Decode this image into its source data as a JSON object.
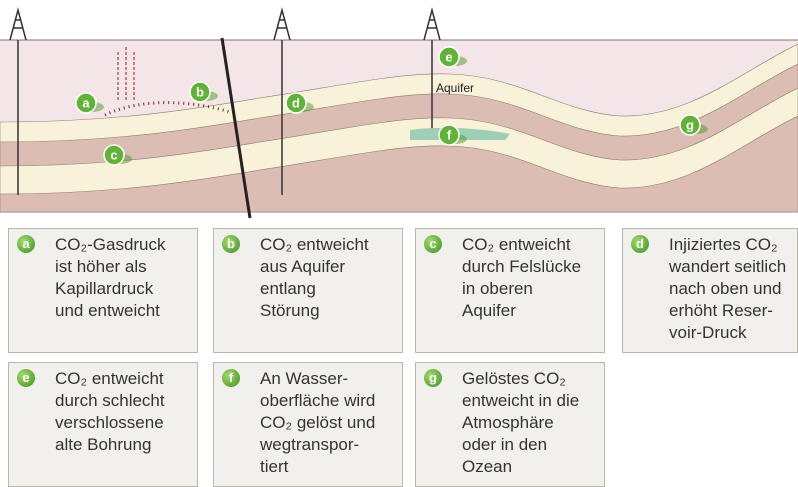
{
  "diagram": {
    "aquifer_label": "Aquifer",
    "markers": [
      "a",
      "b",
      "c",
      "d",
      "e",
      "f",
      "g"
    ]
  },
  "boxes": [
    {
      "letter": "a",
      "lines": [
        "CO₂-Gasdruck",
        "ist höher als",
        "Kapillardruck",
        "und entweicht"
      ]
    },
    {
      "letter": "b",
      "lines": [
        "CO₂ entweicht",
        "aus Aquifer",
        "entlang",
        "Störung"
      ]
    },
    {
      "letter": "c",
      "lines": [
        "CO₂ entweicht",
        "durch Felslücke",
        "in oberen",
        "Aquifer"
      ]
    },
    {
      "letter": "d",
      "lines": [
        "Injiziertes CO₂",
        "wandert seitlich",
        "nach oben und",
        "erhöht Reser-",
        "voir-Druck"
      ]
    },
    {
      "letter": "e",
      "lines": [
        "CO₂ entweicht",
        "durch schlecht",
        "verschlossene",
        "alte Bohrung"
      ]
    },
    {
      "letter": "f",
      "lines": [
        "An Wasser-",
        "oberfläche wird",
        "CO₂ gelöst und",
        "wegtranspor-",
        "tiert"
      ]
    },
    {
      "letter": "g",
      "lines": [
        "Gelöstes CO₂",
        "entweicht in die",
        "Atmosphäre",
        "oder in den",
        "Ozean"
      ]
    }
  ]
}
